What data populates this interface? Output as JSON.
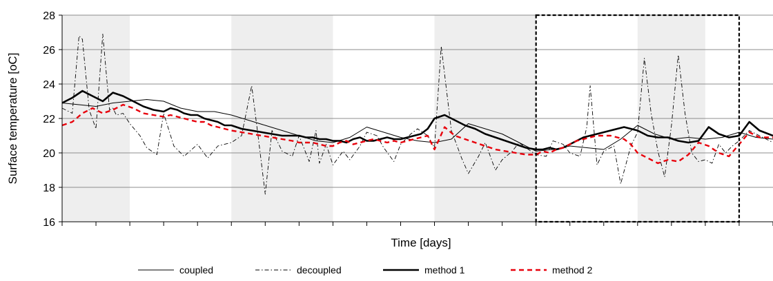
{
  "chart_data": {
    "type": "line",
    "title": "",
    "xlabel": "Time [days]",
    "ylabel": "Surface temperature [oC]",
    "ylim": [
      16,
      28
    ],
    "yticks": [
      16,
      18,
      20,
      22,
      24,
      26,
      28
    ],
    "xlim": [
      0,
      21
    ],
    "x_tick_count": 21,
    "x_tick_labels_shown": false,
    "grid": "horizontal",
    "shaded_day_bands": [
      [
        0,
        2
      ],
      [
        5,
        8
      ],
      [
        11,
        14
      ],
      [
        17,
        19
      ]
    ],
    "highlight_box_days": [
      14,
      20
    ],
    "legend_position": "bottom",
    "series": [
      {
        "name": "coupled",
        "color": "#000000",
        "x": [
          0,
          0.5,
          1,
          1.5,
          2,
          2.5,
          3,
          3.5,
          4,
          4.5,
          5,
          5.5,
          6,
          6.5,
          7,
          7.5,
          8,
          8.5,
          9,
          9.5,
          10,
          10.5,
          11,
          11.5,
          12,
          12.5,
          13,
          13.5,
          14,
          14.5,
          15,
          15.5,
          16,
          16.5,
          17,
          17.5,
          18,
          18.5,
          19,
          19.5,
          20,
          20.5,
          21
        ],
        "values": [
          22.9,
          22.8,
          22.7,
          22.9,
          23.0,
          23.1,
          23.0,
          22.6,
          22.4,
          22.4,
          22.2,
          21.9,
          21.6,
          21.3,
          21.0,
          20.7,
          20.6,
          20.9,
          21.5,
          21.2,
          20.9,
          20.7,
          20.6,
          20.8,
          21.7,
          21.4,
          21.1,
          20.6,
          20.1,
          20.2,
          20.4,
          20.3,
          20.2,
          20.8,
          21.6,
          21.1,
          20.8,
          20.9,
          20.8,
          20.9,
          21.2,
          20.9,
          20.8
        ]
      },
      {
        "name": "decoupled",
        "color": "#000000",
        "x": [
          0,
          0.3,
          0.5,
          0.6,
          0.8,
          1,
          1.2,
          1.4,
          1.5,
          1.6,
          1.8,
          2,
          2.3,
          2.5,
          2.8,
          3,
          3.3,
          3.6,
          4,
          4.3,
          4.6,
          5,
          5.3,
          5.6,
          5.8,
          6,
          6.2,
          6.5,
          6.8,
          7,
          7.3,
          7.5,
          7.6,
          7.8,
          8,
          8.3,
          8.5,
          8.8,
          9,
          9.3,
          9.5,
          9.8,
          10,
          10.3,
          10.5,
          10.8,
          11,
          11.2,
          11.5,
          11.8,
          12,
          12.3,
          12.5,
          12.8,
          13,
          13.3,
          13.5,
          13.7,
          14,
          14.3,
          14.5,
          14.8,
          15,
          15.3,
          15.5,
          15.6,
          15.8,
          16,
          16.3,
          16.5,
          16.8,
          17,
          17.2,
          17.4,
          17.6,
          17.8,
          18,
          18.2,
          18.4,
          18.6,
          18.8,
          19,
          19.2,
          19.4,
          19.6,
          19.8,
          20,
          20.3,
          20.6,
          21
        ],
        "values": [
          22.6,
          22.3,
          26.8,
          26.6,
          22.5,
          21.4,
          26.9,
          22.5,
          22.6,
          22.2,
          22.3,
          21.7,
          21.0,
          20.3,
          19.9,
          22.3,
          20.4,
          19.8,
          20.5,
          19.7,
          20.4,
          20.6,
          21.0,
          23.9,
          20.8,
          17.6,
          21.3,
          20.1,
          19.8,
          21.0,
          19.5,
          21.3,
          19.4,
          20.5,
          19.3,
          20.1,
          19.6,
          20.4,
          21.2,
          21.0,
          20.3,
          19.5,
          20.5,
          21.1,
          21.4,
          21.0,
          20.3,
          26.2,
          21.3,
          19.7,
          18.8,
          19.8,
          20.6,
          19.0,
          19.6,
          20.1,
          20.6,
          20.3,
          19.9,
          19.8,
          20.7,
          20.5,
          20.0,
          19.8,
          21.5,
          23.9,
          19.3,
          20.1,
          20.4,
          18.2,
          20.4,
          21.2,
          25.5,
          22.3,
          20.1,
          18.6,
          21.6,
          25.7,
          22.3,
          20.0,
          19.5,
          19.6,
          19.4,
          20.5,
          20.0,
          20.4,
          20.7,
          21.3,
          21.0,
          20.6
        ]
      },
      {
        "name": "method 1",
        "color": "#000000",
        "x": [
          0,
          0.3,
          0.6,
          0.9,
          1.2,
          1.5,
          1.8,
          2.1,
          2.4,
          2.7,
          3,
          3.2,
          3.4,
          3.6,
          3.8,
          4,
          4.2,
          4.4,
          4.6,
          4.8,
          5,
          5.3,
          5.6,
          5.9,
          6.2,
          6.5,
          6.8,
          7,
          7.2,
          7.4,
          7.6,
          7.8,
          8,
          8.2,
          8.4,
          8.6,
          8.8,
          9,
          9.2,
          9.4,
          9.6,
          9.8,
          10,
          10.2,
          10.4,
          10.6,
          10.8,
          11,
          11.3,
          11.6,
          11.9,
          12.2,
          12.5,
          12.8,
          13.1,
          13.4,
          13.7,
          14,
          14.2,
          14.4,
          14.6,
          14.8,
          15,
          15.2,
          15.4,
          15.6,
          15.8,
          16,
          16.2,
          16.4,
          16.6,
          16.8,
          17,
          17.3,
          17.6,
          17.9,
          18.2,
          18.5,
          18.8,
          19.1,
          19.4,
          19.7,
          20,
          20.3,
          20.6,
          21
        ],
        "values": [
          22.9,
          23.2,
          23.6,
          23.3,
          23.0,
          23.5,
          23.3,
          23.0,
          22.7,
          22.5,
          22.4,
          22.6,
          22.5,
          22.3,
          22.2,
          22.2,
          22.0,
          21.9,
          21.8,
          21.6,
          21.6,
          21.4,
          21.3,
          21.2,
          21.1,
          21.0,
          21.0,
          21.0,
          20.9,
          20.9,
          20.8,
          20.8,
          20.7,
          20.7,
          20.6,
          20.8,
          20.9,
          20.7,
          20.7,
          20.8,
          20.9,
          20.8,
          20.8,
          20.9,
          21.0,
          21.1,
          21.4,
          22.0,
          22.2,
          21.9,
          21.6,
          21.4,
          21.1,
          20.9,
          20.7,
          20.5,
          20.3,
          20.2,
          20.2,
          20.3,
          20.2,
          20.3,
          20.5,
          20.7,
          20.9,
          21.0,
          21.1,
          21.2,
          21.3,
          21.4,
          21.5,
          21.4,
          21.3,
          21.0,
          20.9,
          20.9,
          20.7,
          20.6,
          20.7,
          21.5,
          21.1,
          20.9,
          21.0,
          21.8,
          21.3,
          21.0
        ]
      },
      {
        "name": "method 2",
        "color": "#e8000b",
        "x": [
          0,
          0.3,
          0.6,
          0.9,
          1.2,
          1.5,
          1.8,
          2.1,
          2.4,
          2.7,
          3,
          3.2,
          3.4,
          3.6,
          3.8,
          4,
          4.2,
          4.4,
          4.6,
          4.8,
          5,
          5.3,
          5.6,
          5.9,
          6.2,
          6.5,
          6.8,
          7,
          7.2,
          7.4,
          7.6,
          7.8,
          8,
          8.2,
          8.4,
          8.6,
          8.8,
          9,
          9.2,
          9.4,
          9.6,
          9.8,
          10,
          10.2,
          10.4,
          10.6,
          10.8,
          11,
          11.3,
          11.6,
          11.9,
          12.2,
          12.5,
          12.8,
          13.1,
          13.4,
          13.7,
          14,
          14.2,
          14.4,
          14.6,
          14.8,
          15,
          15.2,
          15.4,
          15.6,
          15.8,
          16,
          16.2,
          16.4,
          16.6,
          16.8,
          17,
          17.3,
          17.6,
          17.9,
          18.2,
          18.5,
          18.8,
          19.1,
          19.4,
          19.7,
          20,
          20.3,
          20.6,
          21
        ],
        "values": [
          21.6,
          21.8,
          22.3,
          22.6,
          22.3,
          22.5,
          22.8,
          22.6,
          22.3,
          22.2,
          22.1,
          22.2,
          22.1,
          22.0,
          21.9,
          21.8,
          21.8,
          21.6,
          21.5,
          21.4,
          21.3,
          21.2,
          21.1,
          21.0,
          20.9,
          20.8,
          20.7,
          20.6,
          20.6,
          20.6,
          20.5,
          20.4,
          20.4,
          20.6,
          20.7,
          20.5,
          20.6,
          20.7,
          20.8,
          20.7,
          20.6,
          20.7,
          20.6,
          20.7,
          20.8,
          20.9,
          21.0,
          20.2,
          21.5,
          21.0,
          20.8,
          20.6,
          20.4,
          20.2,
          20.1,
          20.0,
          19.9,
          19.9,
          20.1,
          20.0,
          20.2,
          20.3,
          20.5,
          20.7,
          20.8,
          20.9,
          21.0,
          21.0,
          21.0,
          20.9,
          20.8,
          20.5,
          20.0,
          19.7,
          19.4,
          19.6,
          19.5,
          19.9,
          20.6,
          20.4,
          20.0,
          19.8,
          20.5,
          21.2,
          20.9,
          20.9
        ]
      }
    ],
    "legend": [
      {
        "label": "coupled",
        "style": "thin-solid"
      },
      {
        "label": "decoupled",
        "style": "dash-dot"
      },
      {
        "label": "method 1",
        "style": "thick-solid"
      },
      {
        "label": "method 2",
        "style": "red-dashed"
      }
    ]
  }
}
